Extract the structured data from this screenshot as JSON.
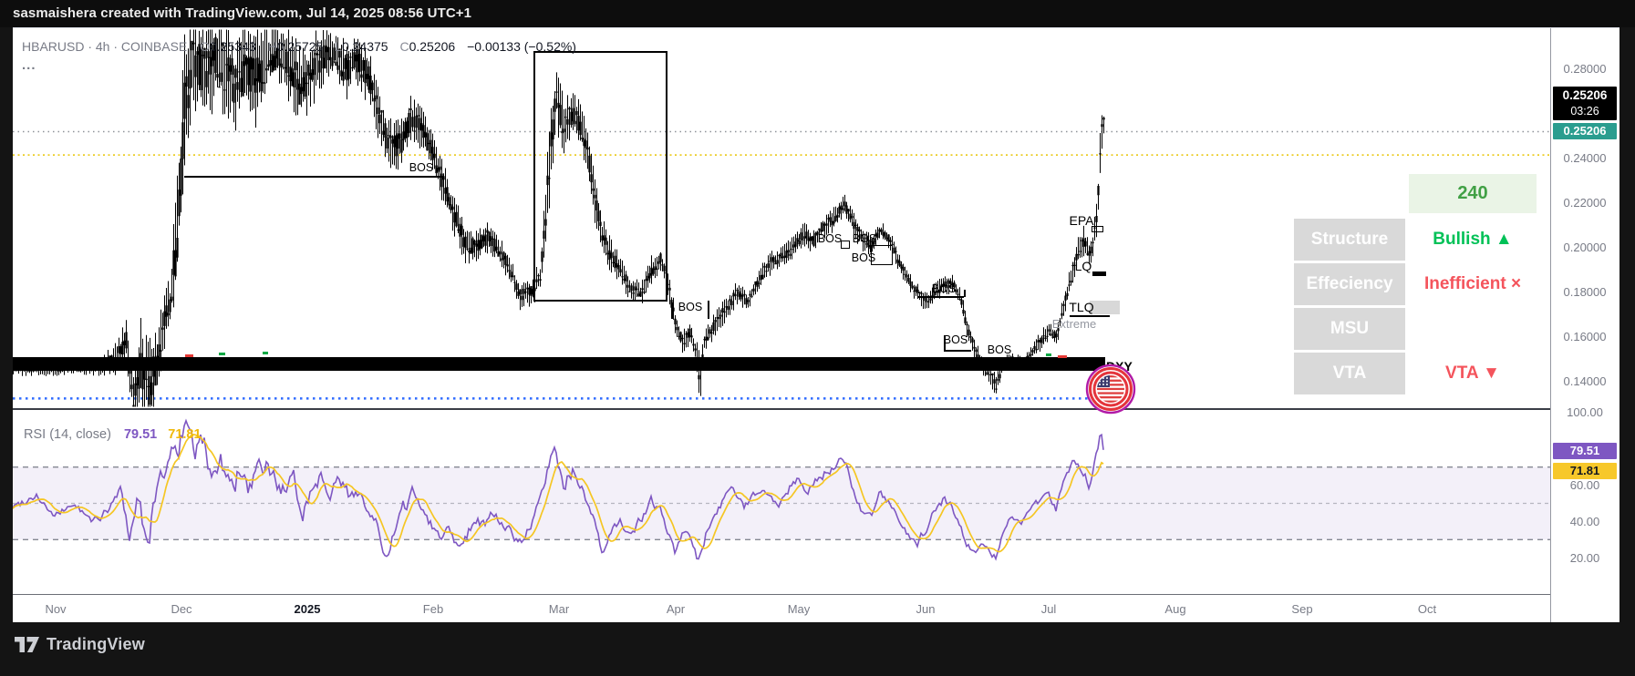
{
  "topbar": {
    "attribution": "sasmaishera created with TradingView.com, Jul 14, 2025 08:56 UTC+1"
  },
  "legend": {
    "symbol_line": "HBARUSD · 4h · COINBASE",
    "o_label": "O",
    "o": "0.25343",
    "h_label": "H",
    "h": "0.25725",
    "l_label": "L",
    "l": "0.24375",
    "c_label": "C",
    "c": "0.25206",
    "change": "−0.00133 (−0.52%)",
    "more": "..."
  },
  "rsi_legend": {
    "title": "RSI (14, close)",
    "value": "79.51",
    "ma_value": "71.81"
  },
  "panel": {
    "timeframe_badge": "240",
    "rows": [
      {
        "button": "Structure",
        "value": "Bullish ▲"
      },
      {
        "button": "Effeciency",
        "value": "Inefficient ×"
      },
      {
        "button": "MSU",
        "value": ""
      },
      {
        "button": "VTA",
        "value": "VTA ▼"
      }
    ]
  },
  "annotations": {
    "bos": "BOS",
    "epa": "EPA",
    "ilq": "ILQ",
    "tlq": "TLQ",
    "extreme": "Extreme",
    "dxy": "DXY"
  },
  "axes": {
    "price_ticks": [
      "0.28000",
      "0.24000",
      "0.22000",
      "0.20000",
      "0.18000",
      "0.16000",
      "0.14000"
    ],
    "rsi_ticks": [
      "100.00",
      "60.00",
      "40.00",
      "20.00"
    ],
    "time_ticks": [
      "Nov",
      "Dec",
      "2025",
      "Feb",
      "Mar",
      "Apr",
      "May",
      "Jun",
      "Jul",
      "Aug",
      "Sep",
      "Oct"
    ]
  },
  "badges": {
    "countdown_price": "0.25206",
    "countdown_time": "03:26",
    "last_price": "0.25206",
    "rsi": "79.51",
    "rsi_ma": "71.81"
  },
  "colors": {
    "candle": "#000000",
    "rsi_line": "#7e57c2",
    "rsi_ma_line": "#f5c623",
    "rsi_band": "#7e57c2",
    "last_price_badge": "#2a9d8f",
    "yellow_level_line": "#e8c400",
    "current_price_line": "#8f9399",
    "blue_dotted_line": "#2f6bff",
    "bullish_green": "#00c157",
    "bearish_red": "#f4545c",
    "tf_badge_green": "#41a045"
  },
  "footer": {
    "logo_text": "TradingView"
  },
  "chart_data": {
    "type": "candlestick",
    "title": "HBARUSD 4h COINBASE with RSI(14) sub-pane",
    "symbol": "HBARUSD",
    "timeframe": "4h",
    "exchange": "COINBASE",
    "ohlc": {
      "open": 0.25343,
      "high": 0.25725,
      "low": 0.24375,
      "close": 0.25206,
      "change": -0.00133,
      "change_pct": -0.52
    },
    "price_axis_range": [
      0.128,
      0.2976
    ],
    "levels": {
      "current_price": 0.25206,
      "yellow_dotted_level": 0.2416,
      "thick_black_line_level": 0.1465,
      "blue_dotted_level": 0.1435
    },
    "time_axis": [
      "Nov",
      "Dec",
      "2025",
      "Feb",
      "Mar",
      "Apr",
      "May",
      "Jun",
      "Jul",
      "Aug",
      "Sep",
      "Oct"
    ],
    "price_anchors": [
      [
        14,
        0.146,
        0.003
      ],
      [
        70,
        0.146,
        0.003
      ],
      [
        110,
        0.147,
        0.004
      ],
      [
        128,
        0.151,
        0.007
      ],
      [
        138,
        0.158,
        0.009
      ],
      [
        146,
        0.132,
        0.01
      ],
      [
        154,
        0.148,
        0.02
      ],
      [
        162,
        0.136,
        0.02
      ],
      [
        170,
        0.146,
        0.016
      ],
      [
        178,
        0.163,
        0.012
      ],
      [
        186,
        0.175,
        0.013
      ],
      [
        194,
        0.205,
        0.025
      ],
      [
        202,
        0.262,
        0.03
      ],
      [
        210,
        0.283,
        0.024
      ],
      [
        222,
        0.28,
        0.02
      ],
      [
        234,
        0.284,
        0.022
      ],
      [
        246,
        0.28,
        0.024
      ],
      [
        258,
        0.272,
        0.022
      ],
      [
        270,
        0.279,
        0.02
      ],
      [
        282,
        0.276,
        0.02
      ],
      [
        294,
        0.285,
        0.015
      ],
      [
        306,
        0.287,
        0.013
      ],
      [
        318,
        0.282,
        0.016
      ],
      [
        330,
        0.272,
        0.02
      ],
      [
        342,
        0.28,
        0.015
      ],
      [
        354,
        0.286,
        0.012
      ],
      [
        366,
        0.287,
        0.011
      ],
      [
        378,
        0.28,
        0.013
      ],
      [
        390,
        0.285,
        0.011
      ],
      [
        402,
        0.278,
        0.012
      ],
      [
        414,
        0.262,
        0.012
      ],
      [
        426,
        0.247,
        0.01
      ],
      [
        438,
        0.246,
        0.011
      ],
      [
        450,
        0.258,
        0.01
      ],
      [
        462,
        0.254,
        0.009
      ],
      [
        474,
        0.242,
        0.009
      ],
      [
        486,
        0.229,
        0.009
      ],
      [
        498,
        0.214,
        0.008
      ],
      [
        510,
        0.202,
        0.008
      ],
      [
        522,
        0.2,
        0.007
      ],
      [
        534,
        0.205,
        0.007
      ],
      [
        546,
        0.199,
        0.006
      ],
      [
        558,
        0.192,
        0.006
      ],
      [
        570,
        0.179,
        0.006
      ],
      [
        582,
        0.18,
        0.006
      ],
      [
        592,
        0.187,
        0.007
      ],
      [
        602,
        0.235,
        0.018
      ],
      [
        610,
        0.268,
        0.014
      ],
      [
        618,
        0.253,
        0.012
      ],
      [
        628,
        0.261,
        0.01
      ],
      [
        636,
        0.255,
        0.009
      ],
      [
        644,
        0.243,
        0.009
      ],
      [
        652,
        0.221,
        0.009
      ],
      [
        660,
        0.205,
        0.008
      ],
      [
        670,
        0.196,
        0.007
      ],
      [
        680,
        0.19,
        0.006
      ],
      [
        692,
        0.181,
        0.005
      ],
      [
        704,
        0.18,
        0.005
      ],
      [
        714,
        0.19,
        0.006
      ],
      [
        724,
        0.195,
        0.005
      ],
      [
        732,
        0.184,
        0.005
      ],
      [
        740,
        0.167,
        0.006
      ],
      [
        748,
        0.158,
        0.005
      ],
      [
        756,
        0.162,
        0.005
      ],
      [
        763,
        0.154,
        0.005
      ],
      [
        767,
        0.14,
        0.011
      ],
      [
        772,
        0.158,
        0.005
      ],
      [
        784,
        0.166,
        0.005
      ],
      [
        796,
        0.173,
        0.005
      ],
      [
        808,
        0.18,
        0.005
      ],
      [
        820,
        0.176,
        0.004
      ],
      [
        832,
        0.186,
        0.005
      ],
      [
        844,
        0.193,
        0.005
      ],
      [
        856,
        0.196,
        0.004
      ],
      [
        868,
        0.199,
        0.005
      ],
      [
        880,
        0.206,
        0.005
      ],
      [
        892,
        0.203,
        0.005
      ],
      [
        902,
        0.209,
        0.005
      ],
      [
        914,
        0.213,
        0.005
      ],
      [
        925,
        0.219,
        0.005
      ],
      [
        935,
        0.211,
        0.005
      ],
      [
        945,
        0.204,
        0.005
      ],
      [
        955,
        0.201,
        0.005
      ],
      [
        965,
        0.208,
        0.004
      ],
      [
        975,
        0.204,
        0.004
      ],
      [
        985,
        0.194,
        0.004
      ],
      [
        995,
        0.186,
        0.004
      ],
      [
        1005,
        0.18,
        0.004
      ],
      [
        1015,
        0.176,
        0.004
      ],
      [
        1025,
        0.18,
        0.004
      ],
      [
        1035,
        0.183,
        0.004
      ],
      [
        1045,
        0.184,
        0.004
      ],
      [
        1053,
        0.177,
        0.004
      ],
      [
        1060,
        0.165,
        0.005
      ],
      [
        1068,
        0.155,
        0.004
      ],
      [
        1076,
        0.148,
        0.004
      ],
      [
        1084,
        0.144,
        0.004
      ],
      [
        1092,
        0.139,
        0.005
      ],
      [
        1100,
        0.148,
        0.003
      ],
      [
        1110,
        0.15,
        0.003
      ],
      [
        1120,
        0.148,
        0.003
      ],
      [
        1130,
        0.152,
        0.003
      ],
      [
        1140,
        0.158,
        0.004
      ],
      [
        1150,
        0.163,
        0.004
      ],
      [
        1158,
        0.16,
        0.004
      ],
      [
        1164,
        0.17,
        0.005
      ],
      [
        1170,
        0.18,
        0.005
      ],
      [
        1176,
        0.19,
        0.006
      ],
      [
        1182,
        0.199,
        0.006
      ],
      [
        1188,
        0.203,
        0.006
      ],
      [
        1194,
        0.197,
        0.005
      ],
      [
        1199,
        0.203,
        0.006
      ],
      [
        1203,
        0.216,
        0.009
      ],
      [
        1206,
        0.242,
        0.013
      ],
      [
        1209,
        0.26,
        0.008
      ],
      [
        1211,
        0.252,
        0.003
      ]
    ],
    "rsi": {
      "length": 14,
      "source": "close",
      "value": 79.51,
      "ma_value": 71.81,
      "band": [
        30,
        70
      ],
      "mid_line": 50,
      "scale": [
        0,
        100
      ],
      "anchors": [
        [
          14,
          48
        ],
        [
          40,
          55
        ],
        [
          60,
          42
        ],
        [
          80,
          50
        ],
        [
          100,
          40
        ],
        [
          120,
          46
        ],
        [
          132,
          58
        ],
        [
          142,
          32
        ],
        [
          152,
          55
        ],
        [
          162,
          26
        ],
        [
          172,
          58
        ],
        [
          182,
          70
        ],
        [
          192,
          82
        ],
        [
          202,
          90
        ],
        [
          212,
          78
        ],
        [
          222,
          84
        ],
        [
          232,
          68
        ],
        [
          242,
          76
        ],
        [
          252,
          58
        ],
        [
          262,
          66
        ],
        [
          272,
          56
        ],
        [
          282,
          64
        ],
        [
          292,
          70
        ],
        [
          302,
          63
        ],
        [
          312,
          56
        ],
        [
          322,
          60
        ],
        [
          332,
          48
        ],
        [
          342,
          58
        ],
        [
          352,
          66
        ],
        [
          362,
          58
        ],
        [
          372,
          62
        ],
        [
          382,
          54
        ],
        [
          392,
          58
        ],
        [
          402,
          48
        ],
        [
          412,
          38
        ],
        [
          422,
          18
        ],
        [
          432,
          32
        ],
        [
          442,
          46
        ],
        [
          452,
          56
        ],
        [
          462,
          50
        ],
        [
          472,
          40
        ],
        [
          482,
          32
        ],
        [
          492,
          36
        ],
        [
          502,
          28
        ],
        [
          512,
          34
        ],
        [
          522,
          42
        ],
        [
          532,
          38
        ],
        [
          542,
          44
        ],
        [
          552,
          38
        ],
        [
          562,
          33
        ],
        [
          572,
          28
        ],
        [
          582,
          38
        ],
        [
          592,
          50
        ],
        [
          602,
          70
        ],
        [
          610,
          78
        ],
        [
          618,
          62
        ],
        [
          628,
          68
        ],
        [
          636,
          60
        ],
        [
          644,
          50
        ],
        [
          652,
          38
        ],
        [
          660,
          20
        ],
        [
          670,
          33
        ],
        [
          680,
          40
        ],
        [
          692,
          34
        ],
        [
          704,
          42
        ],
        [
          714,
          52
        ],
        [
          724,
          46
        ],
        [
          732,
          33
        ],
        [
          740,
          24
        ],
        [
          750,
          34
        ],
        [
          760,
          27
        ],
        [
          767,
          15
        ],
        [
          775,
          36
        ],
        [
          785,
          46
        ],
        [
          795,
          52
        ],
        [
          805,
          58
        ],
        [
          815,
          47
        ],
        [
          825,
          54
        ],
        [
          835,
          60
        ],
        [
          845,
          55
        ],
        [
          855,
          50
        ],
        [
          865,
          58
        ],
        [
          875,
          64
        ],
        [
          885,
          57
        ],
        [
          895,
          62
        ],
        [
          905,
          67
        ],
        [
          915,
          71
        ],
        [
          925,
          77
        ],
        [
          935,
          58
        ],
        [
          945,
          47
        ],
        [
          955,
          42
        ],
        [
          965,
          55
        ],
        [
          975,
          50
        ],
        [
          985,
          40
        ],
        [
          995,
          32
        ],
        [
          1005,
          26
        ],
        [
          1015,
          36
        ],
        [
          1025,
          46
        ],
        [
          1035,
          52
        ],
        [
          1045,
          47
        ],
        [
          1053,
          38
        ],
        [
          1060,
          28
        ],
        [
          1068,
          22
        ],
        [
          1076,
          30
        ],
        [
          1084,
          25
        ],
        [
          1092,
          20
        ],
        [
          1100,
          36
        ],
        [
          1110,
          43
        ],
        [
          1120,
          38
        ],
        [
          1130,
          46
        ],
        [
          1140,
          52
        ],
        [
          1150,
          56
        ],
        [
          1158,
          48
        ],
        [
          1164,
          58
        ],
        [
          1170,
          65
        ],
        [
          1176,
          70
        ],
        [
          1182,
          73
        ],
        [
          1188,
          67
        ],
        [
          1194,
          61
        ],
        [
          1199,
          68
        ],
        [
          1203,
          78
        ],
        [
          1206,
          87
        ],
        [
          1209,
          92
        ],
        [
          1211,
          79.51
        ]
      ]
    }
  }
}
